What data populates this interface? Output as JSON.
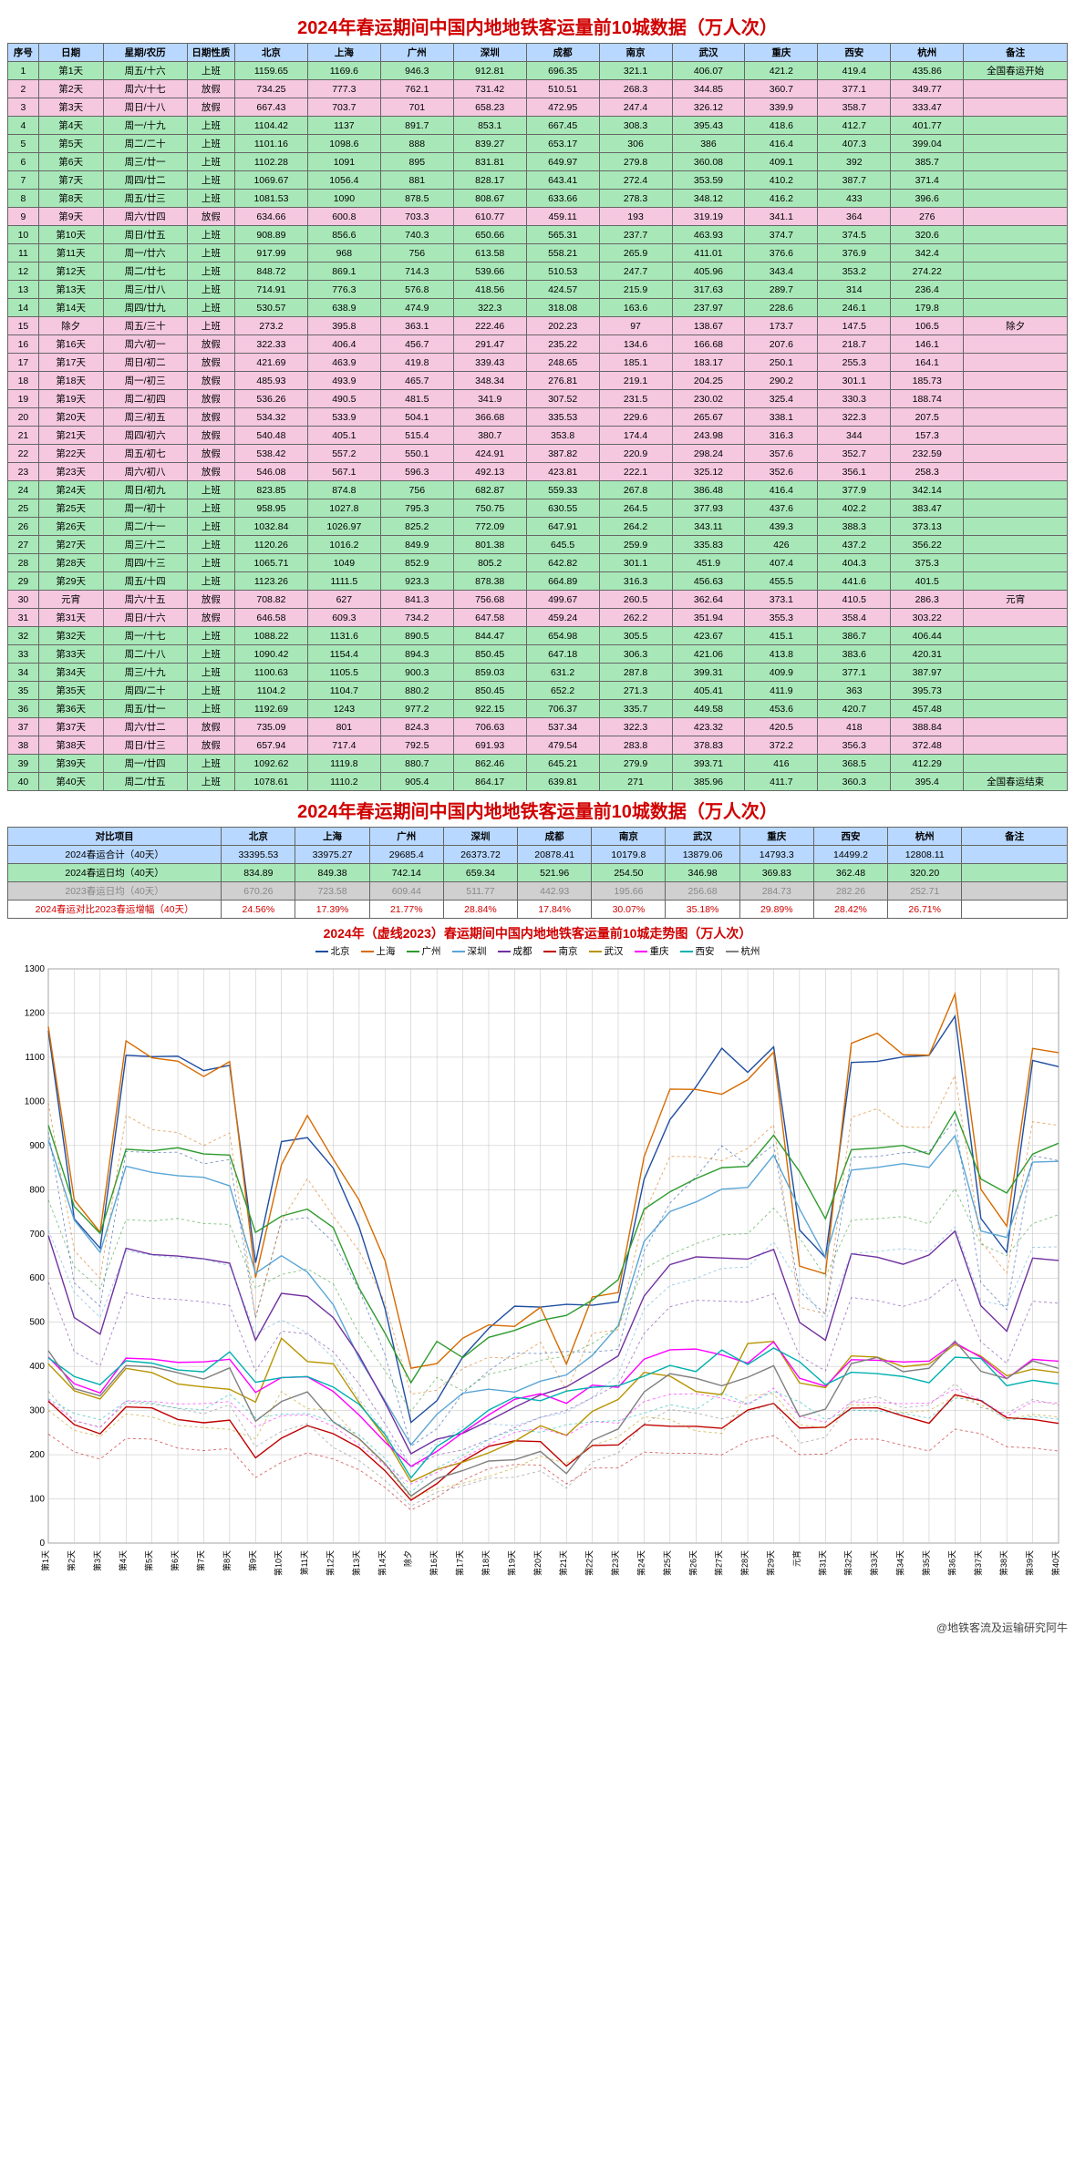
{
  "title": "2024年春运期间中国内地地铁客运量前10城数据（万人次）",
  "columns": [
    "序号",
    "日期",
    "星期/农历",
    "日期性质",
    "北京",
    "上海",
    "广州",
    "深圳",
    "成都",
    "南京",
    "武汉",
    "重庆",
    "西安",
    "杭州",
    "备注"
  ],
  "cities": [
    "北京",
    "上海",
    "广州",
    "深圳",
    "成都",
    "南京",
    "武汉",
    "重庆",
    "西安",
    "杭州"
  ],
  "city_colors": [
    "#1f4ea1",
    "#d66b00",
    "#2e9b2e",
    "#5aa6d6",
    "#7030a0",
    "#c00000",
    "#b89400",
    "#ff00ff",
    "#00b0b0",
    "#7f7f7f"
  ],
  "rows": [
    {
      "c": "green",
      "idx": 1,
      "day": "第1天",
      "wk": "周五/十六",
      "typ": "上班",
      "v": [
        1159.65,
        1169.6,
        946.3,
        912.81,
        696.35,
        321.1,
        406.07,
        421.2,
        419.4,
        435.86
      ],
      "note": "全国春运开始"
    },
    {
      "c": "pink",
      "idx": 2,
      "day": "第2天",
      "wk": "周六/十七",
      "typ": "放假",
      "v": [
        734.25,
        777.3,
        762.1,
        731.42,
        510.51,
        268.3,
        344.85,
        360.7,
        377.1,
        349.77
      ],
      "note": ""
    },
    {
      "c": "pink",
      "idx": 3,
      "day": "第3天",
      "wk": "周日/十八",
      "typ": "放假",
      "v": [
        667.43,
        703.7,
        701,
        658.23,
        472.95,
        247.4,
        326.12,
        339.9,
        358.7,
        333.47
      ],
      "note": ""
    },
    {
      "c": "green",
      "idx": 4,
      "day": "第4天",
      "wk": "周一/十九",
      "typ": "上班",
      "v": [
        1104.42,
        1137,
        891.7,
        853.1,
        667.45,
        308.3,
        395.43,
        418.6,
        412.7,
        401.77
      ],
      "note": ""
    },
    {
      "c": "green",
      "idx": 5,
      "day": "第5天",
      "wk": "周二/二十",
      "typ": "上班",
      "v": [
        1101.16,
        1098.6,
        888.0,
        839.27,
        653.17,
        306,
        386,
        416.4,
        407.3,
        399.04
      ],
      "note": ""
    },
    {
      "c": "green",
      "idx": 6,
      "day": "第6天",
      "wk": "周三/廿一",
      "typ": "上班",
      "v": [
        1102.28,
        1091,
        895,
        831.81,
        649.97,
        279.8,
        360.08,
        409.1,
        392,
        385.7
      ],
      "note": ""
    },
    {
      "c": "green",
      "idx": 7,
      "day": "第7天",
      "wk": "周四/廿二",
      "typ": "上班",
      "v": [
        1069.67,
        1056.4,
        881,
        828.17,
        643.41,
        272.4,
        353.59,
        410.2,
        387.7,
        371.4
      ],
      "note": ""
    },
    {
      "c": "green",
      "idx": 8,
      "day": "第8天",
      "wk": "周五/廿三",
      "typ": "上班",
      "v": [
        1081.53,
        1090,
        878.5,
        808.67,
        633.66,
        278.3,
        348.12,
        416.2,
        433,
        396.6
      ],
      "note": ""
    },
    {
      "c": "pink",
      "idx": 9,
      "day": "第9天",
      "wk": "周六/廿四",
      "typ": "放假",
      "v": [
        634.66,
        600.8,
        703.3,
        610.77,
        459.11,
        193,
        319.19,
        341.1,
        364,
        276
      ],
      "note": ""
    },
    {
      "c": "green",
      "idx": 10,
      "day": "第10天",
      "wk": "周日/廿五",
      "typ": "上班",
      "v": [
        908.89,
        856.6,
        740.3,
        650.66,
        565.31,
        237.7,
        463.93,
        374.7,
        374.5,
        320.6
      ],
      "note": ""
    },
    {
      "c": "green",
      "idx": 11,
      "day": "第11天",
      "wk": "周一/廿六",
      "typ": "上班",
      "v": [
        917.99,
        968,
        756,
        613.58,
        558.21,
        265.9,
        411.01,
        376.6,
        376.9,
        342.4
      ],
      "note": ""
    },
    {
      "c": "green",
      "idx": 12,
      "day": "第12天",
      "wk": "周二/廿七",
      "typ": "上班",
      "v": [
        848.72,
        869.1,
        714.3,
        539.66,
        510.53,
        247.7,
        405.96,
        343.4,
        353.2,
        274.22
      ],
      "note": ""
    },
    {
      "c": "green",
      "idx": 13,
      "day": "第13天",
      "wk": "周三/廿八",
      "typ": "上班",
      "v": [
        714.91,
        776.3,
        576.8,
        418.56,
        424.57,
        215.9,
        317.63,
        289.7,
        314,
        236.4
      ],
      "note": ""
    },
    {
      "c": "green",
      "idx": 14,
      "day": "第14天",
      "wk": "周四/廿九",
      "typ": "上班",
      "v": [
        530.57,
        638.9,
        474.9,
        322.3,
        318.08,
        163.6,
        237.97,
        228.6,
        246.1,
        179.8
      ],
      "note": ""
    },
    {
      "c": "pink",
      "idx": 15,
      "day": "除夕",
      "wk": "周五/三十",
      "typ": "上班",
      "v": [
        273.2,
        395.8,
        363.1,
        222.46,
        202.23,
        97,
        138.67,
        173.7,
        147.5,
        106.5
      ],
      "note": "除夕"
    },
    {
      "c": "pink",
      "idx": 16,
      "day": "第16天",
      "wk": "周六/初一",
      "typ": "放假",
      "v": [
        322.33,
        406.4,
        456.7,
        291.47,
        235.22,
        134.6,
        166.68,
        207.6,
        218.7,
        146.1
      ],
      "note": ""
    },
    {
      "c": "pink",
      "idx": 17,
      "day": "第17天",
      "wk": "周日/初二",
      "typ": "放假",
      "v": [
        421.69,
        463.9,
        419.8,
        339.43,
        248.65,
        185.1,
        183.17,
        250.1,
        255.3,
        164.1
      ],
      "note": ""
    },
    {
      "c": "pink",
      "idx": 18,
      "day": "第18天",
      "wk": "周一/初三",
      "typ": "放假",
      "v": [
        485.93,
        493.9,
        465.7,
        348.34,
        276.81,
        219.1,
        204.25,
        290.2,
        301.1,
        185.73
      ],
      "note": ""
    },
    {
      "c": "pink",
      "idx": 19,
      "day": "第19天",
      "wk": "周二/初四",
      "typ": "放假",
      "v": [
        536.26,
        490.5,
        481.5,
        341.9,
        307.52,
        231.5,
        230.02,
        325.4,
        330.3,
        188.74
      ],
      "note": ""
    },
    {
      "c": "pink",
      "idx": 20,
      "day": "第20天",
      "wk": "周三/初五",
      "typ": "放假",
      "v": [
        534.32,
        533.9,
        504.1,
        366.68,
        335.53,
        229.6,
        265.67,
        338.1,
        322.3,
        207.5
      ],
      "note": ""
    },
    {
      "c": "pink",
      "idx": 21,
      "day": "第21天",
      "wk": "周四/初六",
      "typ": "放假",
      "v": [
        540.48,
        405.1,
        515.4,
        380.7,
        353.8,
        174.4,
        243.98,
        316.3,
        344,
        157.3
      ],
      "note": ""
    },
    {
      "c": "pink",
      "idx": 22,
      "day": "第22天",
      "wk": "周五/初七",
      "typ": "放假",
      "v": [
        538.42,
        557.2,
        550.1,
        424.91,
        387.82,
        220.9,
        298.24,
        357.6,
        352.7,
        232.59
      ],
      "note": ""
    },
    {
      "c": "pink",
      "idx": 23,
      "day": "第23天",
      "wk": "周六/初八",
      "typ": "放假",
      "v": [
        546.08,
        567.1,
        596.3,
        492.13,
        423.81,
        222.1,
        325.12,
        352.6,
        356.1,
        258.3
      ],
      "note": ""
    },
    {
      "c": "green",
      "idx": 24,
      "day": "第24天",
      "wk": "周日/初九",
      "typ": "上班",
      "v": [
        823.85,
        874.8,
        756,
        682.87,
        559.33,
        267.8,
        386.48,
        416.4,
        377.9,
        342.14
      ],
      "note": ""
    },
    {
      "c": "green",
      "idx": 25,
      "day": "第25天",
      "wk": "周一/初十",
      "typ": "上班",
      "v": [
        958.95,
        1027.8,
        795.3,
        750.75,
        630.55,
        264.5,
        377.93,
        437.6,
        402.2,
        383.47
      ],
      "note": ""
    },
    {
      "c": "green",
      "idx": 26,
      "day": "第26天",
      "wk": "周二/十一",
      "typ": "上班",
      "v": [
        1032.84,
        1026.97,
        825.2,
        772.09,
        647.91,
        264.2,
        343.11,
        439.3,
        388.3,
        373.13
      ],
      "note": ""
    },
    {
      "c": "green",
      "idx": 27,
      "day": "第27天",
      "wk": "周三/十二",
      "typ": "上班",
      "v": [
        1120.26,
        1016.2,
        849.9,
        801.38,
        645.5,
        259.9,
        335.83,
        426,
        437.2,
        356.22
      ],
      "note": ""
    },
    {
      "c": "green",
      "idx": 28,
      "day": "第28天",
      "wk": "周四/十三",
      "typ": "上班",
      "v": [
        1065.71,
        1049,
        852.9,
        805.2,
        642.82,
        301.1,
        451.9,
        407.4,
        404.3,
        375.3
      ],
      "note": ""
    },
    {
      "c": "green",
      "idx": 29,
      "day": "第29天",
      "wk": "周五/十四",
      "typ": "上班",
      "v": [
        1123.26,
        1111.5,
        923.3,
        878.38,
        664.89,
        316.3,
        456.63,
        455.5,
        441.6,
        401.5
      ],
      "note": ""
    },
    {
      "c": "pink",
      "idx": 30,
      "day": "元宵",
      "wk": "周六/十五",
      "typ": "放假",
      "v": [
        708.82,
        627,
        841.3,
        756.68,
        499.67,
        260.5,
        362.64,
        373.1,
        410.5,
        286.3
      ],
      "note": "元宵"
    },
    {
      "c": "pink",
      "idx": 31,
      "day": "第31天",
      "wk": "周日/十六",
      "typ": "放假",
      "v": [
        646.58,
        609.3,
        734.2,
        647.58,
        459.24,
        262.2,
        351.94,
        355.3,
        358.4,
        303.22
      ],
      "note": ""
    },
    {
      "c": "green",
      "idx": 32,
      "day": "第32天",
      "wk": "周一/十七",
      "typ": "上班",
      "v": [
        1088.22,
        1131.6,
        890.5,
        844.47,
        654.98,
        305.5,
        423.67,
        415.1,
        386.7,
        406.44
      ],
      "note": ""
    },
    {
      "c": "green",
      "idx": 33,
      "day": "第33天",
      "wk": "周二/十八",
      "typ": "上班",
      "v": [
        1090.42,
        1154.4,
        894.3,
        850.45,
        647.18,
        306.3,
        421.06,
        413.8,
        383.6,
        420.31
      ],
      "note": ""
    },
    {
      "c": "green",
      "idx": 34,
      "day": "第34天",
      "wk": "周三/十九",
      "typ": "上班",
      "v": [
        1100.63,
        1105.5,
        900.3,
        859.03,
        631.2,
        287.8,
        399.31,
        409.9,
        377.1,
        387.97
      ],
      "note": ""
    },
    {
      "c": "green",
      "idx": 35,
      "day": "第35天",
      "wk": "周四/二十",
      "typ": "上班",
      "v": [
        1104.2,
        1104.7,
        880.2,
        850.45,
        652.2,
        271.3,
        405.41,
        411.9,
        363,
        395.73
      ],
      "note": ""
    },
    {
      "c": "green",
      "idx": 36,
      "day": "第36天",
      "wk": "周五/廿一",
      "typ": "上班",
      "v": [
        1192.69,
        1243,
        977.2,
        922.15,
        706.37,
        335.7,
        449.58,
        453.6,
        420.7,
        457.48
      ],
      "note": ""
    },
    {
      "c": "pink",
      "idx": 37,
      "day": "第37天",
      "wk": "周六/廿二",
      "typ": "放假",
      "v": [
        735.09,
        801,
        824.3,
        706.63,
        537.34,
        322.3,
        423.32,
        420.5,
        418,
        388.84
      ],
      "note": ""
    },
    {
      "c": "pink",
      "idx": 38,
      "day": "第38天",
      "wk": "周日/廿三",
      "typ": "放假",
      "v": [
        657.94,
        717.4,
        792.5,
        691.93,
        479.54,
        283.8,
        378.83,
        372.2,
        356.3,
        372.48
      ],
      "note": ""
    },
    {
      "c": "green",
      "idx": 39,
      "day": "第39天",
      "wk": "周一/廿四",
      "typ": "上班",
      "v": [
        1092.62,
        1119.8,
        880.7,
        862.46,
        645.21,
        279.9,
        393.71,
        416,
        368.5,
        412.29
      ],
      "note": ""
    },
    {
      "c": "green",
      "idx": 40,
      "day": "第40天",
      "wk": "周二/廿五",
      "typ": "上班",
      "v": [
        1078.61,
        1110.2,
        905.4,
        864.17,
        639.81,
        271,
        385.96,
        411.7,
        360.3,
        395.4
      ],
      "note": "全国春运结束"
    }
  ],
  "summary": {
    "label_col": "对比项目",
    "rows": [
      {
        "c": "blue",
        "lbl": "2024春运合计（40天）",
        "v": [
          "33395.53",
          "33975.27",
          "29685.4",
          "26373.72",
          "20878.41",
          "10179.8",
          "13879.06",
          "14793.3",
          "14499.2",
          "12808.11"
        ],
        "note": ""
      },
      {
        "c": "green",
        "lbl": "2024春运日均（40天）",
        "v": [
          "834.89",
          "849.38",
          "742.14",
          "659.34",
          "521.96",
          "254.50",
          "346.98",
          "369.83",
          "362.48",
          "320.20"
        ],
        "note": ""
      },
      {
        "c": "grey",
        "lbl": "2023春运日均（40天）",
        "v": [
          "670.26",
          "723.58",
          "609.44",
          "511.77",
          "442.93",
          "195.66",
          "256.68",
          "284.73",
          "282.26",
          "252.71"
        ],
        "note": ""
      },
      {
        "c": "redrow",
        "lbl": "2024春运对比2023春运增幅（40天）",
        "v": [
          "24.56%",
          "17.39%",
          "21.77%",
          "28.84%",
          "17.84%",
          "30.07%",
          "35.18%",
          "29.89%",
          "28.42%",
          "26.71%"
        ],
        "note": ""
      }
    ]
  },
  "chart": {
    "title": "2024年（虚线2023）春运期间中国内地地铁客运量前10城走势图（万人次）",
    "ymin": 0,
    "ymax": 1300,
    "ystep": 100,
    "grid_color": "#bfbfbf",
    "bg": "#ffffff"
  },
  "footer": "@地铁客流及运输研究阿牛"
}
